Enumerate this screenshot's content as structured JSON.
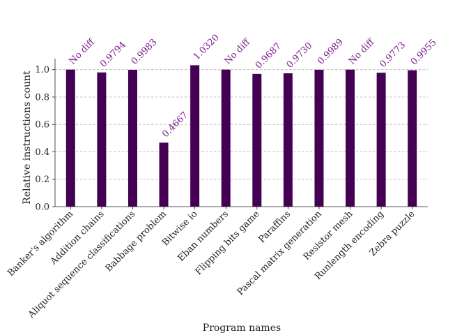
{
  "chart_data": {
    "type": "bar",
    "xlabel": "Program names",
    "ylabel": "Relative instructions count",
    "ylim": [
      0,
      1.08
    ],
    "yticks": [
      "0.0",
      "0.2",
      "0.4",
      "0.6",
      "0.8",
      "1.0"
    ],
    "grid": "horizontal dashed",
    "categories": [
      "Banker's algorithm",
      "Addition chains",
      "Aliquot sequence classifications",
      "Babbage problem",
      "Bitwise io",
      "Eban numbers",
      "Flipping bits game",
      "Paraffins",
      "Pascal matrix generation",
      "Resistor mesh",
      "Runlength encoding",
      "Zebra puzzle"
    ],
    "values": [
      1.0,
      0.9794,
      0.9983,
      0.4667,
      1.032,
      1.0,
      0.9687,
      0.973,
      0.9989,
      1.0,
      0.9773,
      0.9955
    ],
    "data_labels": [
      "No diff",
      "0.9794",
      "0.9983",
      "0.4667",
      "1.0320",
      "No diff",
      "0.9687",
      "0.9730",
      "0.9989",
      "No diff",
      "0.9773",
      "0.9955"
    ],
    "bar_color": "#440154",
    "label_color": "#7b1a8c"
  }
}
